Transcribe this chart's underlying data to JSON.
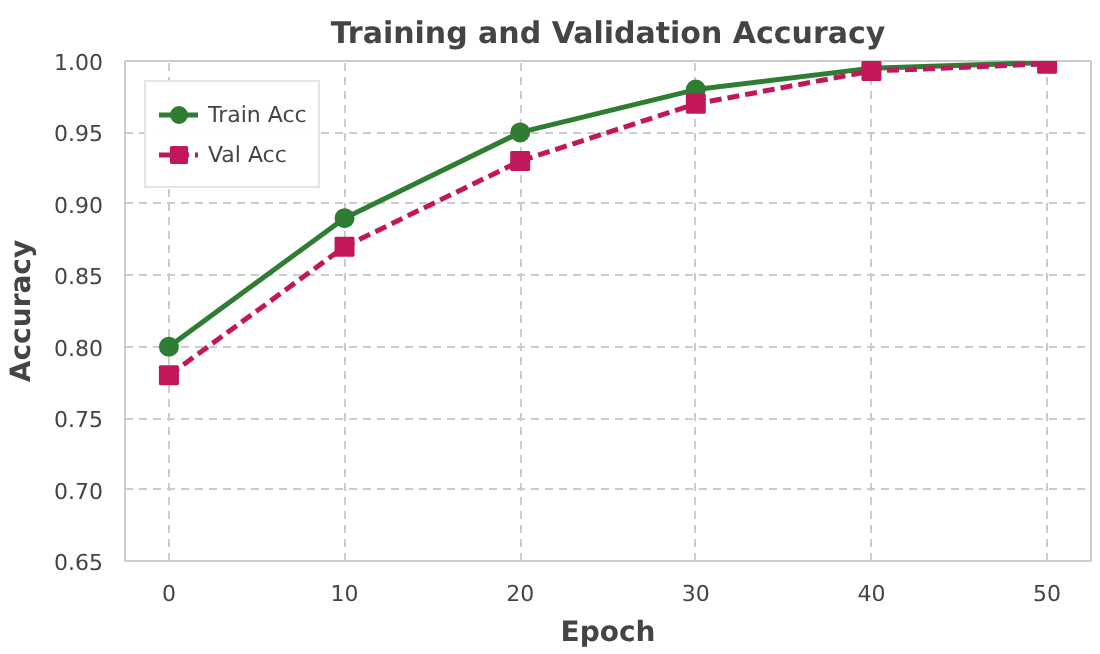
{
  "chart_data": {
    "type": "line",
    "title": "Training and Validation Accuracy",
    "xlabel": "Epoch",
    "ylabel": "Accuracy",
    "x": [
      0,
      10,
      20,
      30,
      40,
      50
    ],
    "series": [
      {
        "name": "Train Acc",
        "color": "#2e7d32",
        "values": [
          0.8,
          0.89,
          0.95,
          0.98,
          0.995,
          0.999
        ],
        "marker": "circle",
        "line_style": "solid"
      },
      {
        "name": "Val Acc",
        "color": "#c2185b",
        "values": [
          0.78,
          0.87,
          0.93,
          0.97,
          0.993,
          0.998
        ],
        "marker": "square",
        "line_style": "dashed"
      }
    ],
    "xlim": [
      -2.5,
      52.5
    ],
    "ylim": [
      0.65,
      1.0
    ],
    "xticks": [
      0,
      10,
      20,
      30,
      40,
      50
    ],
    "yticks": [
      {
        "value": 0.65,
        "label": "0.65"
      },
      {
        "value": 0.7,
        "label": "0.70"
      },
      {
        "value": 0.75,
        "label": "0.75"
      },
      {
        "value": 0.8,
        "label": "0.80"
      },
      {
        "value": 0.85,
        "label": "0.85"
      },
      {
        "value": 0.9,
        "label": "0.90"
      },
      {
        "value": 0.95,
        "label": "0.95"
      },
      {
        "value": 1.0,
        "label": "1.00"
      }
    ],
    "grid": true,
    "legend": "top left"
  }
}
